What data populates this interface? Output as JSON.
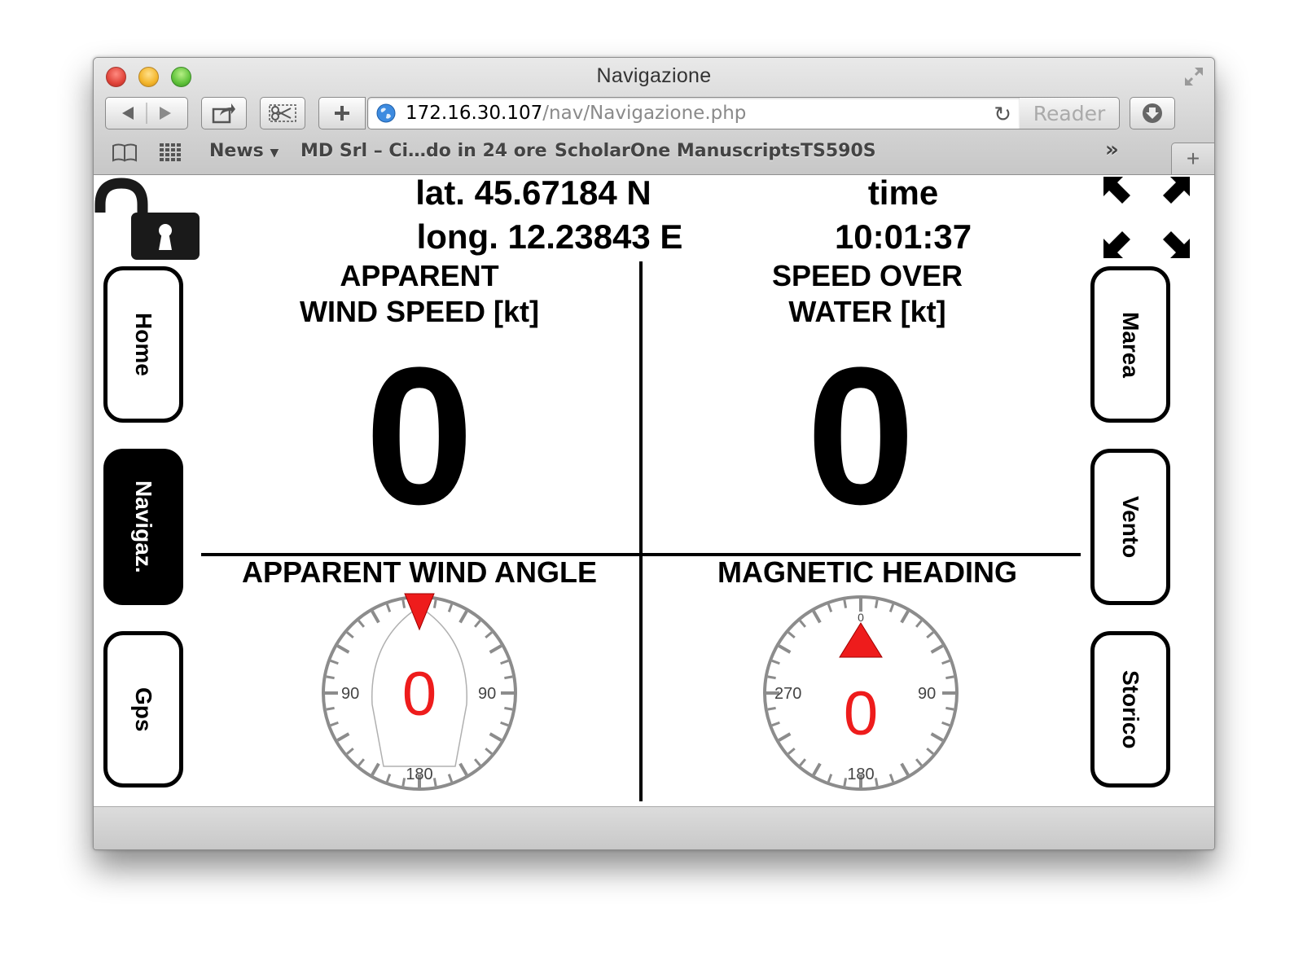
{
  "browser": {
    "window_title": "Navigazione",
    "url_host": "172.16.30.107",
    "url_path": "/nav/Navigazione.php",
    "reader_label": "Reader",
    "bookmarks": [
      "News",
      "MD Srl – Ci…do in 24 ore",
      "ScholarOne Manuscripts",
      "TS590S"
    ],
    "overflow_label": "»",
    "new_tab_label": "+"
  },
  "header": {
    "lat": "lat. 45.67184 N",
    "long": "long. 12.23843 E",
    "time_label": "time",
    "time_value": "10:01:37"
  },
  "nav_left": [
    {
      "label": "Home",
      "active": false
    },
    {
      "label": "Navigaz.",
      "active": true
    },
    {
      "label": "Gps",
      "active": false
    }
  ],
  "nav_right": [
    {
      "label": "Marea",
      "active": false
    },
    {
      "label": "Vento",
      "active": false
    },
    {
      "label": "Storico",
      "active": false
    }
  ],
  "panels": {
    "wind_speed": {
      "title_line1": "APPARENT",
      "title_line2": "WIND SPEED [kt]",
      "value": "0"
    },
    "water_speed": {
      "title_line1": "SPEED OVER",
      "title_line2": "WATER [kt]",
      "value": "0"
    },
    "wind_angle": {
      "title": "APPARENT WIND ANGLE",
      "value": "0",
      "angle_deg": 0,
      "labels": {
        "left": "90",
        "right": "90",
        "bottom": "180"
      }
    },
    "heading": {
      "title": "MAGNETIC HEADING",
      "value": "0",
      "heading_deg": 0,
      "labels": {
        "top": "0",
        "left": "270",
        "right": "90",
        "bottom": "180"
      }
    }
  },
  "colors": {
    "accent_red": "#ee1c1c",
    "active_button": "#000000"
  }
}
